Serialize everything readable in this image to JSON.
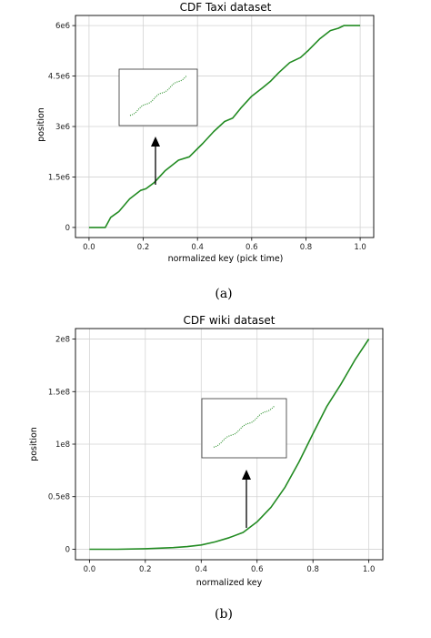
{
  "chart_data": [
    {
      "type": "line",
      "title": "CDF Taxi dataset",
      "xlabel": "normalized key (pick time)",
      "ylabel": "position",
      "caption": "(a)",
      "xlim": [
        -0.05,
        1.05
      ],
      "ylim": [
        -300000,
        6300000
      ],
      "grid": true,
      "xticks": [
        0.0,
        0.2,
        0.4,
        0.6,
        0.8,
        1.0
      ],
      "xtick_labels": [
        "0.0",
        "0.2",
        "0.4",
        "0.6",
        "0.8",
        "1.0"
      ],
      "yticks": [
        0,
        1500000,
        3000000,
        4500000,
        6000000
      ],
      "ytick_labels": [
        "0",
        "1.5e6",
        "3e6",
        "4.5e6",
        "6e6"
      ],
      "color": "#228b22",
      "series": [
        {
          "x": [
            0.0,
            0.06,
            0.08,
            0.11,
            0.15,
            0.19,
            0.21,
            0.24,
            0.28,
            0.33,
            0.37,
            0.42,
            0.46,
            0.5,
            0.53,
            0.56,
            0.6,
            0.64,
            0.67,
            0.7,
            0.74,
            0.78,
            0.81,
            0.85,
            0.89,
            0.92,
            0.94,
            0.96,
            1.0
          ],
          "y": [
            0,
            0,
            300000,
            470000,
            850000,
            1100000,
            1150000,
            1330000,
            1680000,
            2000000,
            2100000,
            2500000,
            2850000,
            3150000,
            3250000,
            3550000,
            3900000,
            4150000,
            4350000,
            4600000,
            4900000,
            5050000,
            5270000,
            5600000,
            5850000,
            5920000,
            6000000,
            6000000,
            6000000
          ]
        }
      ],
      "inset": {
        "annotation": "zoomed-in view (dotted)"
      }
    },
    {
      "type": "line",
      "title": "CDF wiki dataset",
      "xlabel": "normalized key",
      "ylabel": "position",
      "caption": "(b)",
      "xlim": [
        -0.05,
        1.05
      ],
      "ylim": [
        -10000000,
        210000000
      ],
      "grid": true,
      "xticks": [
        0.0,
        0.2,
        0.4,
        0.6,
        0.8,
        1.0
      ],
      "xtick_labels": [
        "0.0",
        "0.2",
        "0.4",
        "0.6",
        "0.8",
        "1.0"
      ],
      "yticks": [
        0,
        50000000,
        100000000,
        150000000,
        200000000
      ],
      "ytick_labels": [
        "0",
        "0.5e8",
        "1e8",
        "1.5e8",
        "2e8"
      ],
      "color": "#228b22",
      "series": [
        {
          "x": [
            0.0,
            0.1,
            0.2,
            0.3,
            0.35,
            0.4,
            0.45,
            0.5,
            0.55,
            0.6,
            0.65,
            0.7,
            0.75,
            0.8,
            0.85,
            0.9,
            0.95,
            1.0
          ],
          "y": [
            0,
            0,
            500000,
            1500000,
            2500000,
            4000000,
            7000000,
            11000000,
            16000000,
            26000000,
            40000000,
            59000000,
            83000000,
            110000000,
            136000000,
            157000000,
            180000000,
            200000000
          ]
        }
      ]
    }
  ]
}
